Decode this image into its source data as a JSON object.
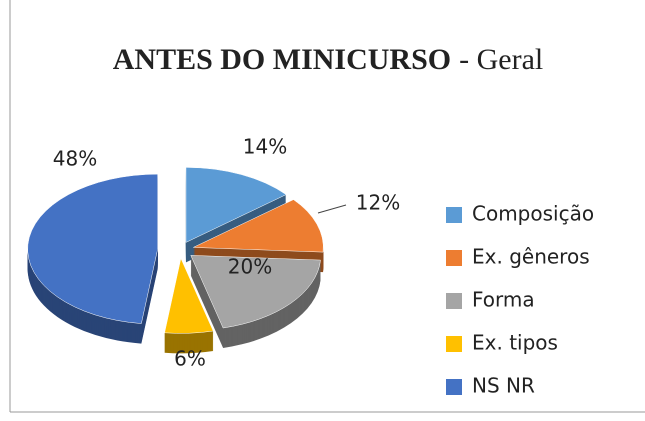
{
  "chart_data": {
    "type": "pie",
    "title": "ANTES DO MINICURSO",
    "subtitle": "- Geral",
    "categories": [
      "Composição",
      "Ex. gêneros",
      "Forma",
      "Ex. tipos",
      "NS NR"
    ],
    "values": [
      14,
      12,
      20,
      6,
      48
    ],
    "value_labels": [
      "14%",
      "12%",
      "20%",
      "6%",
      "48%"
    ],
    "colors": [
      "#5b9bd5",
      "#ed7d31",
      "#a5a5a5",
      "#ffc000",
      "#4472c4"
    ],
    "legend": "right"
  }
}
